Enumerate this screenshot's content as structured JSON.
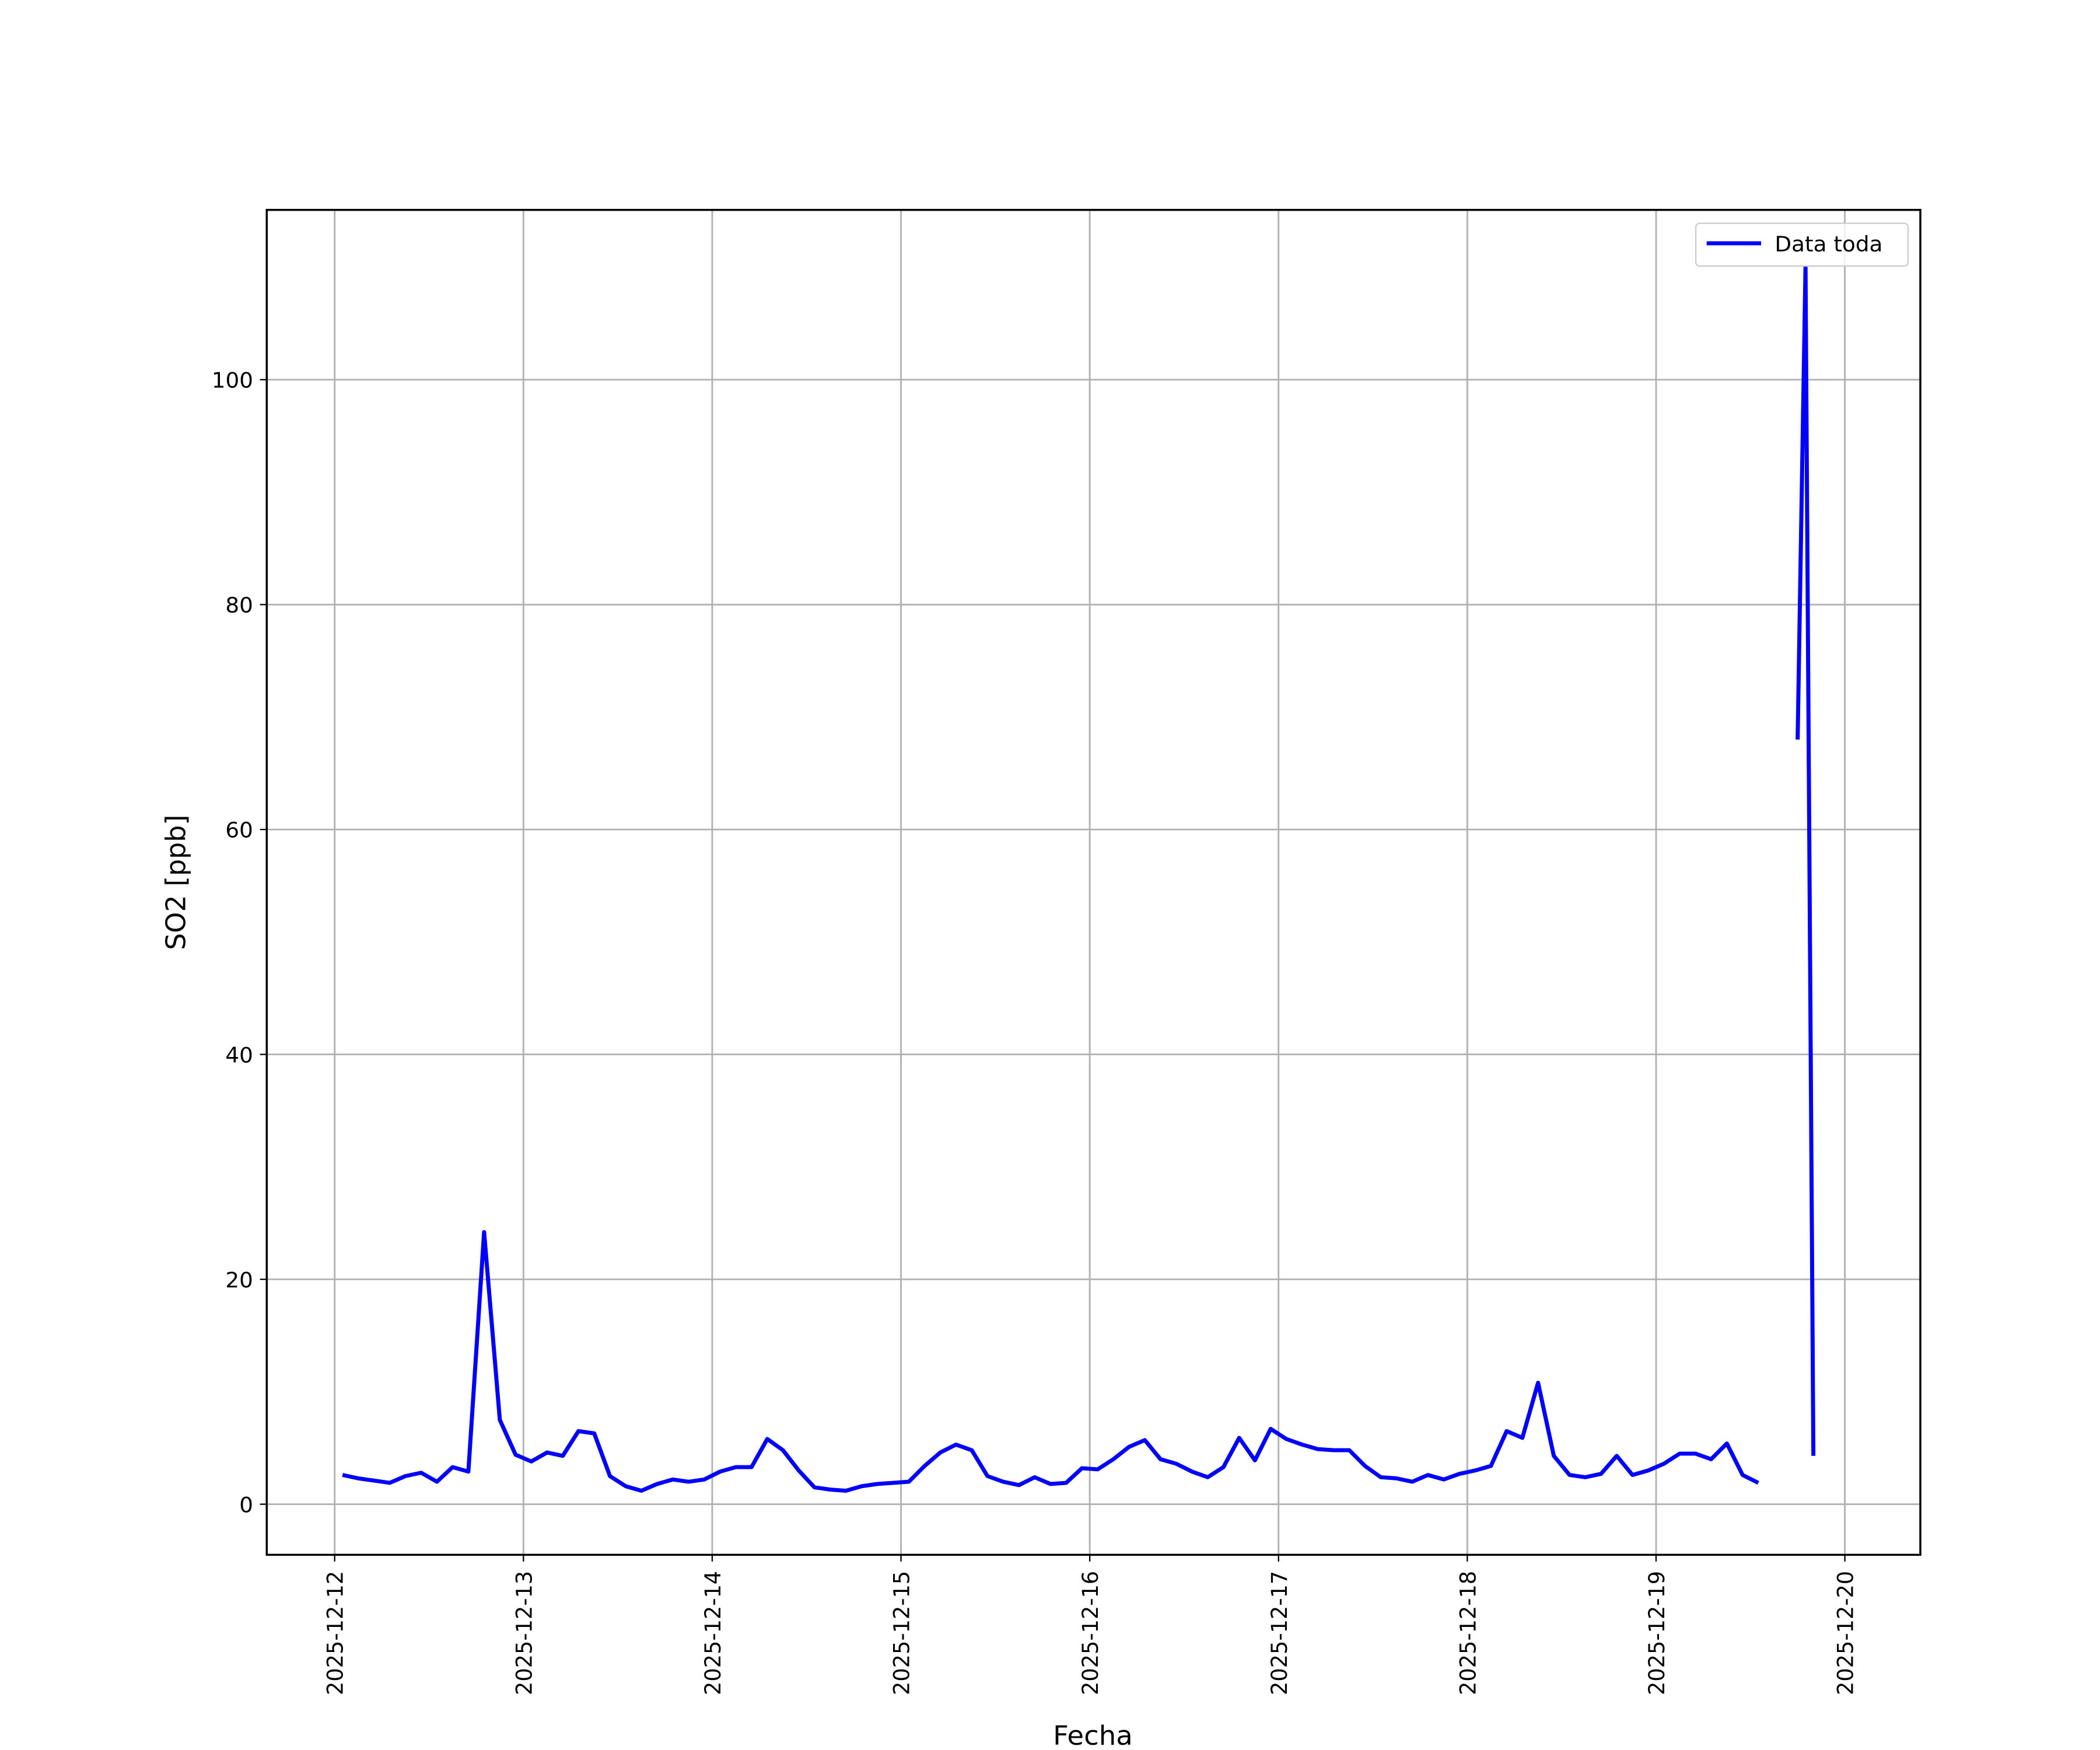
{
  "chart_data": {
    "type": "line",
    "xlabel": "Fecha",
    "ylabel": "SO2 [ppb]",
    "x": [
      "2025-12-12T01:00",
      "2025-12-12T03:00",
      "2025-12-12T05:00",
      "2025-12-12T07:00",
      "2025-12-12T09:00",
      "2025-12-12T11:00",
      "2025-12-12T13:00",
      "2025-12-12T15:00",
      "2025-12-12T17:00",
      "2025-12-12T19:00",
      "2025-12-12T21:00",
      "2025-12-12T23:00",
      "2025-12-13T01:00",
      "2025-12-13T03:00",
      "2025-12-13T05:00",
      "2025-12-13T07:00",
      "2025-12-13T09:00",
      "2025-12-13T11:00",
      "2025-12-13T13:00",
      "2025-12-13T15:00",
      "2025-12-13T17:00",
      "2025-12-13T19:00",
      "2025-12-13T21:00",
      "2025-12-13T23:00",
      "2025-12-14T01:00",
      "2025-12-14T03:00",
      "2025-12-14T05:00",
      "2025-12-14T07:00",
      "2025-12-14T09:00",
      "2025-12-14T11:00",
      "2025-12-14T13:00",
      "2025-12-14T15:00",
      "2025-12-14T17:00",
      "2025-12-14T19:00",
      "2025-12-14T21:00",
      "2025-12-14T23:00",
      "2025-12-15T01:00",
      "2025-12-15T03:00",
      "2025-12-15T05:00",
      "2025-12-15T07:00",
      "2025-12-15T09:00",
      "2025-12-15T11:00",
      "2025-12-15T13:00",
      "2025-12-15T15:00",
      "2025-12-15T17:00",
      "2025-12-15T19:00",
      "2025-12-15T21:00",
      "2025-12-15T23:00",
      "2025-12-16T01:00",
      "2025-12-16T03:00",
      "2025-12-16T05:00",
      "2025-12-16T07:00",
      "2025-12-16T09:00",
      "2025-12-16T11:00",
      "2025-12-16T13:00",
      "2025-12-16T15:00",
      "2025-12-16T17:00",
      "2025-12-16T19:00",
      "2025-12-16T21:00",
      "2025-12-16T23:00",
      "2025-12-17T01:00",
      "2025-12-17T03:00",
      "2025-12-17T05:00",
      "2025-12-17T07:00",
      "2025-12-17T09:00",
      "2025-12-17T11:00",
      "2025-12-17T13:00",
      "2025-12-17T15:00",
      "2025-12-17T17:00",
      "2025-12-17T19:00",
      "2025-12-17T21:00",
      "2025-12-17T23:00",
      "2025-12-18T01:00",
      "2025-12-18T03:00",
      "2025-12-18T05:00",
      "2025-12-18T07:00",
      "2025-12-18T09:00",
      "2025-12-18T11:00",
      "2025-12-18T13:00",
      "2025-12-18T15:00",
      "2025-12-18T17:00",
      "2025-12-18T19:00",
      "2025-12-18T21:00",
      "2025-12-18T23:00",
      "2025-12-19T01:00",
      "2025-12-19T03:00",
      "2025-12-19T05:00",
      "2025-12-19T07:00",
      "2025-12-19T09:00",
      "2025-12-19T11:00",
      "2025-12-19T13:00",
      "2025-12-19T15:00",
      "2025-12-19T18:00",
      "2025-12-19T19:00",
      "2025-12-19T20:00"
    ],
    "series": [
      {
        "name": "Data toda",
        "color": "#0000ff",
        "values": [
          2.6,
          2.3,
          2.1,
          1.9,
          2.5,
          2.8,
          2.0,
          3.3,
          2.9,
          24.2,
          7.5,
          4.4,
          3.8,
          4.6,
          4.3,
          6.5,
          6.3,
          2.5,
          1.6,
          1.2,
          1.8,
          2.2,
          2.0,
          2.2,
          2.9,
          3.3,
          3.3,
          5.8,
          4.8,
          3.0,
          1.5,
          1.3,
          1.2,
          1.6,
          1.8,
          1.9,
          2.0,
          3.4,
          4.6,
          5.3,
          4.8,
          2.5,
          2.0,
          1.7,
          2.4,
          1.8,
          1.9,
          3.2,
          3.1,
          4.0,
          5.1,
          5.7,
          4.0,
          3.6,
          2.9,
          2.4,
          3.3,
          5.9,
          3.9,
          6.7,
          5.8,
          5.3,
          4.9,
          4.8,
          4.8,
          3.4,
          2.4,
          2.3,
          2.0,
          2.6,
          2.2,
          2.7,
          3.0,
          3.4,
          6.5,
          5.9,
          10.8,
          4.3,
          2.6,
          2.4,
          2.7,
          4.3,
          2.6,
          3.0,
          3.6,
          4.5,
          4.5,
          4.0,
          5.4,
          2.6,
          1.9,
          null,
          68,
          110,
          4.3
        ]
      }
    ],
    "xlim": [
      "2025-12-11T15:22",
      "2025-12-20T09:36"
    ],
    "xticks": [
      "2025-12-12",
      "2025-12-13",
      "2025-12-14",
      "2025-12-15",
      "2025-12-16",
      "2025-12-17",
      "2025-12-18",
      "2025-12-19",
      "2025-12-20"
    ],
    "ylim": [
      -4.5,
      115.1
    ],
    "yticks": [
      0,
      20,
      40,
      60,
      80,
      100
    ],
    "grid": true,
    "legend": "upper right"
  }
}
